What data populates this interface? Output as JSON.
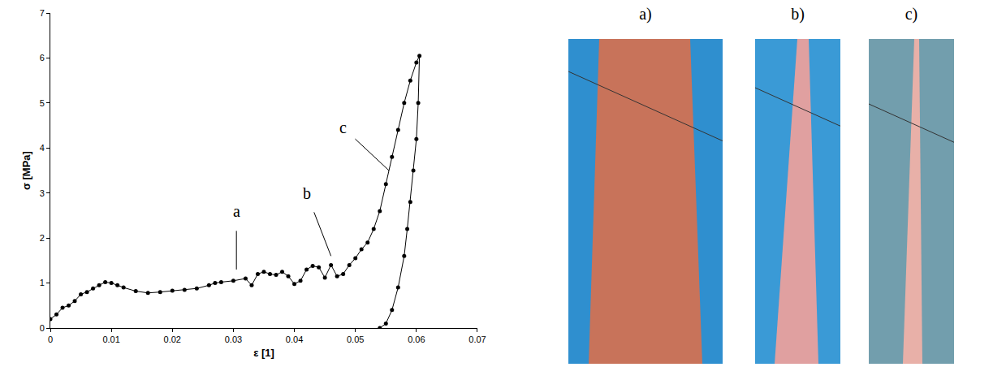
{
  "chart_data": {
    "type": "scatter",
    "marker": "circle",
    "line_style": "solid",
    "color": "#000000",
    "x_label": "ε [1]",
    "y_label": "σ [MPa]",
    "x": [
      0,
      0.001,
      0.002,
      0.003,
      0.004,
      0.005,
      0.006,
      0.007,
      0.008,
      0.009,
      0.01,
      0.011,
      0.012,
      0.014,
      0.016,
      0.018,
      0.02,
      0.022,
      0.024,
      0.026,
      0.027,
      0.028,
      0.03,
      0.032,
      0.033,
      0.034,
      0.035,
      0.036,
      0.037,
      0.038,
      0.039,
      0.04,
      0.041,
      0.042,
      0.043,
      0.044,
      0.045,
      0.046,
      0.047,
      0.048,
      0.049,
      0.05,
      0.051,
      0.052,
      0.053,
      0.054,
      0.055,
      0.056,
      0.057,
      0.058,
      0.059,
      0.06,
      0.0605,
      0.0603,
      0.06,
      0.0595,
      0.059,
      0.0585,
      0.058,
      0.057,
      0.056,
      0.055,
      0.054
    ],
    "values": [
      0.2,
      0.3,
      0.45,
      0.5,
      0.6,
      0.75,
      0.8,
      0.88,
      0.95,
      1.02,
      1.0,
      0.95,
      0.9,
      0.82,
      0.78,
      0.8,
      0.83,
      0.85,
      0.88,
      0.95,
      1.0,
      1.02,
      1.05,
      1.1,
      0.95,
      1.2,
      1.25,
      1.2,
      1.18,
      1.25,
      1.15,
      0.98,
      1.05,
      1.3,
      1.38,
      1.35,
      1.12,
      1.4,
      1.15,
      1.2,
      1.4,
      1.55,
      1.75,
      1.9,
      2.2,
      2.6,
      3.2,
      3.8,
      4.4,
      5.0,
      5.5,
      5.9,
      6.05,
      5.0,
      4.2,
      3.5,
      2.8,
      2.2,
      1.6,
      0.9,
      0.4,
      0.1,
      0
    ],
    "xlim": [
      0,
      0.07
    ],
    "xticks": [
      0,
      0.01,
      0.02,
      0.03,
      0.04,
      0.05,
      0.06,
      0.07
    ],
    "ylim": [
      0,
      7
    ],
    "yticks": [
      0,
      1,
      2,
      3,
      4,
      5,
      6,
      7
    ],
    "grid": false,
    "annotations": [
      {
        "text": "a",
        "x": 0.0305,
        "y": 1.3,
        "text_x": 0.0305,
        "text_y": 2.6
      },
      {
        "text": "b",
        "x": 0.046,
        "y": 1.6,
        "text_x": 0.042,
        "text_y": 3.0
      },
      {
        "text": "c",
        "x": 0.0555,
        "y": 3.5,
        "text_x": 0.048,
        "text_y": 4.45
      }
    ]
  },
  "panels": {
    "labels": [
      "a)",
      "b)",
      "c)"
    ]
  }
}
